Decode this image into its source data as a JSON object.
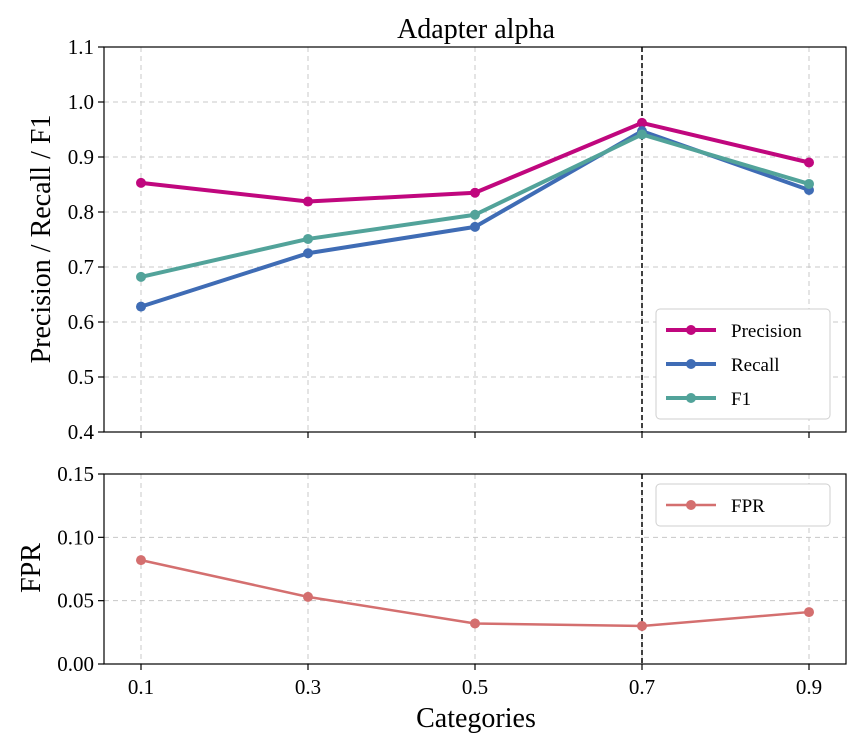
{
  "chart_data": [
    {
      "type": "line",
      "title": "Adapter alpha",
      "xlabel": "",
      "ylabel": "Precision / Recall / F1",
      "categories": [
        "0.1",
        "0.3",
        "0.5",
        "0.7",
        "0.9"
      ],
      "y_ticks": [
        "0.4",
        "0.5",
        "0.6",
        "0.7",
        "0.8",
        "0.9",
        "1.0",
        "1.1"
      ],
      "ylim": [
        0.4,
        1.1
      ],
      "reference_line_category": "0.7",
      "legend_position": "lower-right",
      "series": [
        {
          "name": "Precision",
          "color": "#c0077e",
          "values": [
            0.853,
            0.819,
            0.835,
            0.962,
            0.89
          ]
        },
        {
          "name": "Recall",
          "color": "#3f6cb5",
          "values": [
            0.628,
            0.725,
            0.773,
            0.947,
            0.84
          ]
        },
        {
          "name": "F1",
          "color": "#52a39a",
          "values": [
            0.682,
            0.751,
            0.795,
            0.941,
            0.851
          ]
        }
      ]
    },
    {
      "type": "line",
      "title": "",
      "xlabel": "Categories",
      "ylabel": "FPR",
      "categories": [
        "0.1",
        "0.3",
        "0.5",
        "0.7",
        "0.9"
      ],
      "x_ticks": [
        "0.1",
        "0.3",
        "0.5",
        "0.7",
        "0.9"
      ],
      "y_ticks": [
        "0.00",
        "0.05",
        "0.10",
        "0.15"
      ],
      "ylim": [
        0.0,
        0.15
      ],
      "reference_line_category": "0.7",
      "legend_position": "upper-right",
      "series": [
        {
          "name": "FPR",
          "color": "#d46f6f",
          "values": [
            0.082,
            0.053,
            0.032,
            0.03,
            0.041
          ]
        }
      ]
    }
  ]
}
